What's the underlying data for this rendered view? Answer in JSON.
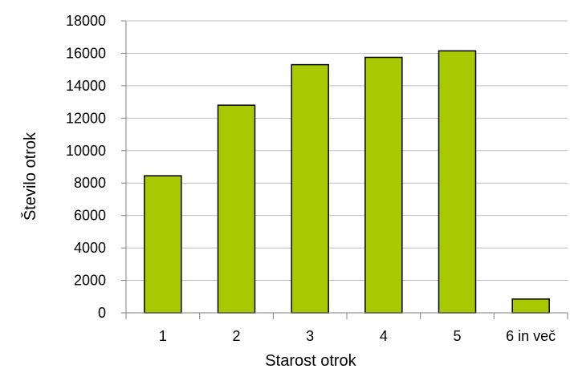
{
  "chart_data": {
    "type": "bar",
    "categories": [
      "1",
      "2",
      "3",
      "4",
      "5",
      "6 in več"
    ],
    "values": [
      8450,
      12800,
      15300,
      15750,
      16150,
      850
    ],
    "xlabel": "Starost otrok",
    "ylabel": "Število otrok",
    "ylim": [
      0,
      18000
    ],
    "yticks": [
      0,
      2000,
      4000,
      6000,
      8000,
      10000,
      12000,
      14000,
      16000,
      18000
    ],
    "grid": true,
    "legend": "none",
    "colors": {
      "bar_fill": "#A8C800",
      "bar_stroke": "#000000",
      "grid": "#BFBFBF",
      "axis": "#808080"
    }
  }
}
